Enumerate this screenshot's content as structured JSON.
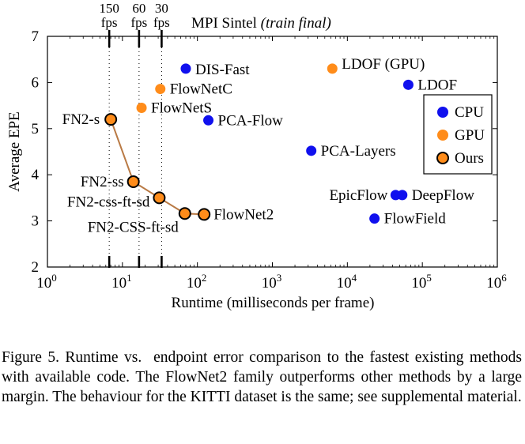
{
  "chart_data": {
    "type": "scatter",
    "title": "MPI Sintel",
    "title_italic": "(train final)",
    "xlabel": "Runtime (milliseconds per frame)",
    "ylabel": "Average EPE",
    "xscale": "log",
    "xlim": [
      1,
      1000000
    ],
    "ylim": [
      2,
      7
    ],
    "x_ticks": [
      {
        "value": 1,
        "base": "10",
        "exp": "0"
      },
      {
        "value": 10,
        "base": "10",
        "exp": "1"
      },
      {
        "value": 100,
        "base": "10",
        "exp": "2"
      },
      {
        "value": 1000,
        "base": "10",
        "exp": "3"
      },
      {
        "value": 10000,
        "base": "10",
        "exp": "4"
      },
      {
        "value": 100000,
        "base": "10",
        "exp": "5"
      },
      {
        "value": 1000000,
        "base": "10",
        "exp": "6"
      }
    ],
    "y_ticks": [
      2,
      3,
      4,
      5,
      6,
      7
    ],
    "fps_markers": [
      {
        "value": 6.67,
        "fps": "150",
        "unit": "fps"
      },
      {
        "value": 16.67,
        "fps": "60",
        "unit": "fps"
      },
      {
        "value": 33.33,
        "fps": "30",
        "unit": "fps"
      }
    ],
    "legend": [
      {
        "name": "CPU",
        "color": "#1010ee",
        "outline": false
      },
      {
        "name": "GPU",
        "color": "#ff8c1a",
        "outline": false
      },
      {
        "name": "Ours",
        "color": "#ff8c1a",
        "outline": true
      }
    ],
    "legend_placement": "right",
    "ours_line_color": "#b97a45",
    "series": [
      {
        "name": "CPU",
        "color": "#1010ee",
        "points": [
          {
            "label": "DIS-Fast",
            "x": 70,
            "y": 6.3
          },
          {
            "label": "PCA-Flow",
            "x": 140,
            "y": 5.18
          },
          {
            "label": "PCA-Layers",
            "x": 3300,
            "y": 4.52
          },
          {
            "label": "LDOF",
            "x": 65000,
            "y": 5.95
          },
          {
            "label": "EpicFlow",
            "x": 44000,
            "y": 3.56
          },
          {
            "label": "DeepFlow",
            "x": 54000,
            "y": 3.56
          },
          {
            "label": "FlowField",
            "x": 23000,
            "y": 3.05
          }
        ]
      },
      {
        "name": "GPU",
        "color": "#ff8c1a",
        "points": [
          {
            "label": "FlowNetC",
            "x": 32,
            "y": 5.86
          },
          {
            "label": "FlowNetS",
            "x": 18,
            "y": 5.45
          },
          {
            "label": "LDOF (GPU)",
            "x": 6300,
            "y": 6.3
          }
        ]
      },
      {
        "name": "Ours",
        "color": "#ff8c1a",
        "points": [
          {
            "label": "FN2-s",
            "x": 7,
            "y": 5.2
          },
          {
            "label": "FN2-ss",
            "x": 14,
            "y": 3.85
          },
          {
            "label": "FN2-css-ft-sd",
            "x": 31,
            "y": 3.5
          },
          {
            "label": "FN2-CSS-ft-sd",
            "x": 68,
            "y": 3.16
          },
          {
            "label": "FlowNet2",
            "x": 123,
            "y": 3.14
          }
        ]
      }
    ]
  },
  "caption": "Figure 5. Runtime vs.  endpoint error comparison to the fastest existing methods with available code. The FlowNet2 family outperforms other methods by a large margin. The behaviour for the KITTI dataset is the same; see supplemental material."
}
